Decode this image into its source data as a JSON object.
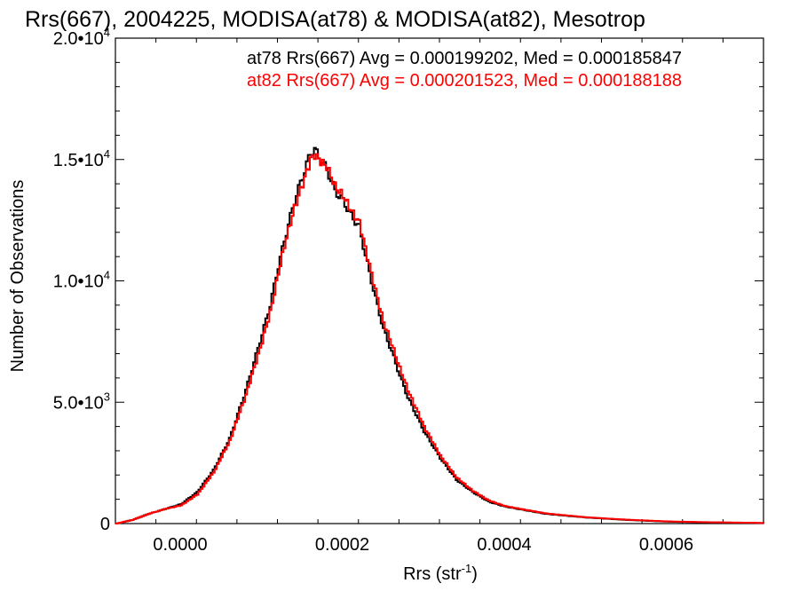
{
  "chart_data": {
    "type": "line",
    "title": "Rrs(667), 2004225, MODISA(at78) & MODISA(at82), Mesotrop",
    "xlabel": "Rrs (str",
    "xlabel_sup": "-1",
    "xlabel_close": ")",
    "ylabel": "Number of Observations",
    "xlim": [
      -8e-05,
      0.00072
    ],
    "ylim": [
      0,
      20000
    ],
    "x_ticks": [
      {
        "value": 0.0,
        "label": "0.0000"
      },
      {
        "value": 0.0002,
        "label": "0.0002"
      },
      {
        "value": 0.0004,
        "label": "0.0004"
      },
      {
        "value": 0.0006,
        "label": "0.0006"
      }
    ],
    "y_ticks": [
      {
        "value": 0,
        "mant": "0",
        "exp": ""
      },
      {
        "value": 5000,
        "mant": "5.0•10",
        "exp": "3"
      },
      {
        "value": 10000,
        "mant": "1.0•10",
        "exp": "4"
      },
      {
        "value": 15000,
        "mant": "1.5•10",
        "exp": "4"
      },
      {
        "value": 20000,
        "mant": "2.0•10",
        "exp": "4"
      }
    ],
    "stats": [
      {
        "text": "at78 Rrs(667) Avg = 0.000199202, Med = 0.000185847",
        "color": "#000000"
      },
      {
        "text": "at82 Rrs(667) Avg = 0.000201523, Med = 0.000188188",
        "color": "#ff0000"
      }
    ],
    "series": [
      {
        "color": "#000000",
        "x": [
          -8e-05,
          -6e-05,
          -4e-05,
          -2e-05,
          0.0,
          2e-05,
          4e-05,
          6e-05,
          8e-05,
          0.0001,
          0.00011,
          0.00012,
          0.00013,
          0.00014,
          0.00015,
          0.00016,
          0.000165,
          0.00017,
          0.00018,
          0.00019,
          0.0002,
          0.00021,
          0.00022,
          0.00023,
          0.00024,
          0.00025,
          0.00026,
          0.00027,
          0.00028,
          0.0003,
          0.00032,
          0.00034,
          0.00036,
          0.00038,
          0.0004,
          0.00045,
          0.0005,
          0.00055,
          0.0006,
          0.00065,
          0.0007,
          0.00072
        ],
        "y": [
          0,
          150,
          400,
          600,
          800,
          1300,
          2200,
          3500,
          5500,
          7800,
          9000,
          10600,
          12000,
          13300,
          14300,
          15300,
          15400,
          15100,
          14600,
          13700,
          13300,
          12700,
          12200,
          10700,
          9300,
          8000,
          7100,
          6100,
          5200,
          3800,
          2700,
          1800,
          1300,
          900,
          700,
          400,
          250,
          150,
          80,
          50,
          30,
          20
        ]
      },
      {
        "color": "#ff0000",
        "x": [
          -8e-05,
          -6e-05,
          -4e-05,
          -2e-05,
          0.0,
          2e-05,
          4e-05,
          6e-05,
          8e-05,
          0.0001,
          0.00011,
          0.00012,
          0.00013,
          0.00014,
          0.00015,
          0.00016,
          0.000165,
          0.00017,
          0.00018,
          0.00019,
          0.0002,
          0.00021,
          0.00022,
          0.00023,
          0.00024,
          0.00025,
          0.00026,
          0.00027,
          0.00028,
          0.0003,
          0.00032,
          0.00034,
          0.00036,
          0.00038,
          0.0004,
          0.00045,
          0.0005,
          0.00055,
          0.0006,
          0.00065,
          0.0007,
          0.00072
        ],
        "y": [
          0,
          150,
          400,
          600,
          750,
          1200,
          2100,
          3400,
          5300,
          7500,
          8700,
          10300,
          11800,
          13000,
          14000,
          15000,
          15200,
          15000,
          14700,
          13900,
          13500,
          12900,
          12400,
          11000,
          9600,
          8300,
          7400,
          6400,
          5500,
          4000,
          2800,
          1900,
          1350,
          950,
          720,
          420,
          260,
          160,
          90,
          55,
          35,
          22
        ]
      }
    ]
  }
}
